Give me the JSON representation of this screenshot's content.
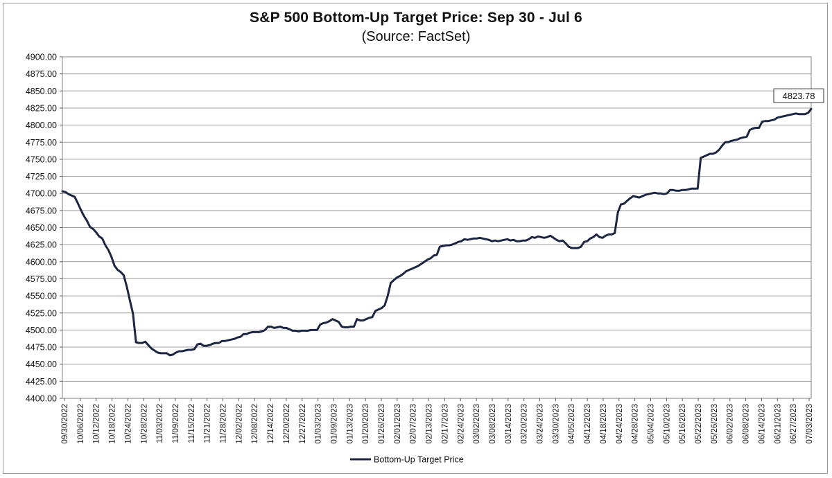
{
  "chart_data": {
    "type": "line",
    "title": "S&P 500 Bottom-Up Target Price: Sep 30 - Jul 6",
    "subtitle": "(Source: FactSet)",
    "ylim": [
      4400,
      4900
    ],
    "ytick_step": 25,
    "ytick_labels": [
      "4400.00",
      "4425.00",
      "4450.00",
      "4475.00",
      "4500.00",
      "4525.00",
      "4550.00",
      "4575.00",
      "4600.00",
      "4625.00",
      "4650.00",
      "4675.00",
      "4700.00",
      "4725.00",
      "4750.00",
      "4775.00",
      "4800.00",
      "4825.00",
      "4850.00",
      "4875.00",
      "4900.00"
    ],
    "x_tick_labels": [
      "09/30/2022",
      "10/06/2022",
      "10/12/2022",
      "10/18/2022",
      "10/24/2022",
      "10/28/2022",
      "11/03/2022",
      "11/09/2022",
      "11/15/2022",
      "11/21/2022",
      "11/28/2022",
      "12/02/2022",
      "12/08/2022",
      "12/14/2022",
      "12/20/2022",
      "12/27/2022",
      "01/03/2023",
      "01/09/2023",
      "01/13/2023",
      "01/20/2023",
      "01/26/2023",
      "02/01/2023",
      "02/07/2023",
      "02/13/2023",
      "02/17/2023",
      "02/24/2023",
      "03/02/2023",
      "03/08/2023",
      "03/14/2023",
      "03/20/2023",
      "03/24/2023",
      "03/30/2023",
      "04/05/2023",
      "04/12/2023",
      "04/18/2023",
      "04/24/2023",
      "04/28/2023",
      "05/04/2023",
      "05/10/2023",
      "05/16/2023",
      "05/22/2023",
      "05/26/2023",
      "06/02/2023",
      "06/08/2023",
      "06/14/2023",
      "06/21/2023",
      "06/27/2023",
      "07/03/2023"
    ],
    "grid": true,
    "legend_position": "bottom-center",
    "series": [
      {
        "name": "Bottom-Up Target Price",
        "color": "#1c2541",
        "values": [
          4703,
          4702,
          4699,
          4697,
          4695,
          4686,
          4676,
          4667,
          4660,
          4651,
          4648,
          4643,
          4637,
          4634,
          4624,
          4617,
          4607,
          4594,
          4588,
          4585,
          4580,
          4563,
          4543,
          4524,
          4482,
          4481,
          4481,
          4483,
          4478,
          4473,
          4470,
          4467,
          4466,
          4466,
          4466,
          4463,
          4464,
          4467,
          4469,
          4469,
          4470,
          4471,
          4471,
          4472,
          4479,
          4480,
          4477,
          4477,
          4478,
          4480,
          4481,
          4481,
          4484,
          4484,
          4485,
          4486,
          4487,
          4489,
          4490,
          4494,
          4494,
          4496,
          4497,
          4497,
          4497,
          4498,
          4500,
          4505,
          4505,
          4503,
          4504,
          4505,
          4503,
          4503,
          4501,
          4499,
          4499,
          4498,
          4499,
          4499,
          4499,
          4500,
          4500,
          4500,
          4508,
          4510,
          4511,
          4513,
          4516,
          4514,
          4512,
          4505,
          4504,
          4504,
          4505,
          4505,
          4516,
          4514,
          4514,
          4516,
          4518,
          4519,
          4528,
          4530,
          4532,
          4536,
          4550,
          4569,
          4573,
          4577,
          4579,
          4582,
          4586,
          4588,
          4590,
          4592,
          4594,
          4597,
          4600,
          4603,
          4605,
          4609,
          4610,
          4622,
          4623,
          4624,
          4624,
          4625,
          4627,
          4629,
          4630,
          4633,
          4632,
          4633,
          4634,
          4634,
          4635,
          4634,
          4633,
          4632,
          4630,
          4631,
          4630,
          4631,
          4632,
          4633,
          4631,
          4632,
          4630,
          4630,
          4631,
          4631,
          4633,
          4636,
          4635,
          4637,
          4636,
          4635,
          4636,
          4638,
          4635,
          4632,
          4630,
          4631,
          4627,
          4622,
          4620,
          4620,
          4620,
          4622,
          4629,
          4630,
          4634,
          4636,
          4640,
          4636,
          4635,
          4638,
          4640,
          4640,
          4642,
          4672,
          4684,
          4685,
          4689,
          4693,
          4696,
          4695,
          4694,
          4696,
          4698,
          4699,
          4700,
          4701,
          4700,
          4700,
          4699,
          4700,
          4705,
          4705,
          4704,
          4704,
          4705,
          4705,
          4706,
          4707,
          4707,
          4707,
          4752,
          4754,
          4756,
          4758,
          4758,
          4760,
          4764,
          4770,
          4775,
          4775,
          4777,
          4778,
          4779,
          4781,
          4782,
          4783,
          4793,
          4795,
          4796,
          4796,
          4805,
          4806,
          4806,
          4807,
          4808,
          4811,
          4812,
          4813,
          4814,
          4815,
          4816,
          4817,
          4816,
          4816,
          4816,
          4818,
          4823.78
        ]
      }
    ],
    "last_value_label": "4823.78"
  }
}
